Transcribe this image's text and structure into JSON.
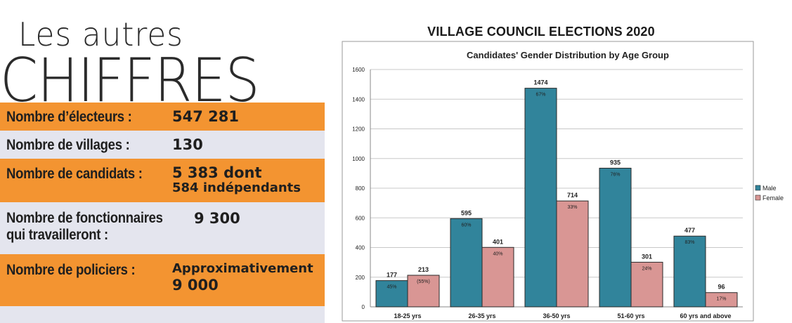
{
  "left_panel": {
    "heading_small": "Les autres",
    "heading_big": "CHIFFRES",
    "rows": [
      {
        "label": "Nombre d’électeurs :",
        "value": "547 281",
        "value_extra": "",
        "color": "#f39431"
      },
      {
        "label": "Nombre de villages :",
        "value": "130",
        "value_extra": "",
        "color": "#e4e5ee"
      },
      {
        "label": "Nombre de candidats :",
        "value": "5 383 dont",
        "value_extra": "584 indépendants",
        "color": "#f39431"
      },
      {
        "label": "Nombre de fonctionnaires",
        "label2": "qui travailleront :",
        "value": "9 300",
        "value_extra": "",
        "color": "#e4e5ee"
      },
      {
        "label": "Nombre de policiers :",
        "value": "Approximativement",
        "value_extra": "9 000",
        "color": "#f39431"
      }
    ],
    "bottom_color": "#e4e5ee"
  },
  "chart_header": "VILLAGE COUNCIL ELECTIONS 2020",
  "chart_data": {
    "type": "bar",
    "title": "Candidates' Gender Distribution by Age Group",
    "categories": [
      "18-25 yrs",
      "26-35 yrs",
      "36-50 yrs",
      "51-60 yrs",
      "60 yrs and above"
    ],
    "series": [
      {
        "name": "Male",
        "values": [
          177,
          595,
          1474,
          935,
          477
        ],
        "percent_labels": [
          "45%",
          "60%",
          "67%",
          "76%",
          "83%"
        ],
        "color": "#31849b"
      },
      {
        "name": "Female",
        "values": [
          213,
          401,
          714,
          301,
          96
        ],
        "percent_labels": [
          "(55%)",
          "40%",
          "33%",
          "24%",
          "17%"
        ],
        "color": "#d99694"
      }
    ],
    "ylim": [
      0,
      1600
    ],
    "yticks": [
      0,
      200,
      400,
      600,
      800,
      1000,
      1200,
      1400,
      1600
    ],
    "grid": true,
    "legend_position": "right"
  }
}
